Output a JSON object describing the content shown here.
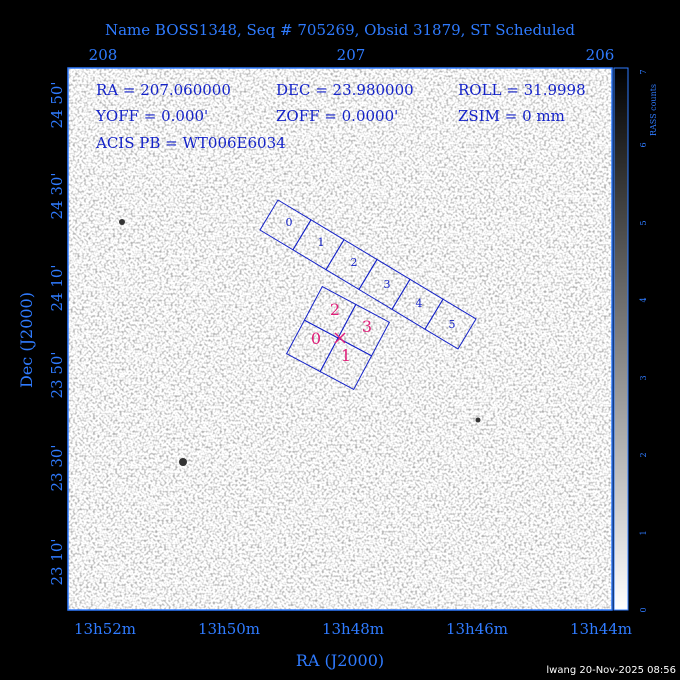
{
  "title": "Name BOSS1348, Seq # 705269, Obsid 31879, ST Scheduled",
  "top_axis": {
    "ticks": [
      "208",
      "207",
      "206"
    ]
  },
  "left_axis": {
    "label": "Dec (J2000)",
    "ticks": [
      "24 50'",
      "24 30'",
      "24 10'",
      "23 50'",
      "23 30'",
      "23 10'"
    ]
  },
  "bottom_axis": {
    "label": "RA (J2000)",
    "ticks": [
      "13h52m",
      "13h50m",
      "13h48m",
      "13h46m",
      "13h44m"
    ]
  },
  "info": [
    [
      "RA = 207.060000",
      "DEC = 23.980000",
      "ROLL = 31.9998"
    ],
    [
      "YOFF = 0.000'",
      "ZOFF = 0.0000'",
      "ZSIM = 0 mm"
    ],
    [
      "ACIS PB = WT006E6034"
    ]
  ],
  "acis_s_chips": [
    "0",
    "1",
    "2",
    "3",
    "4",
    "5"
  ],
  "acis_i_chips": [
    "2",
    "3",
    "0",
    "1"
  ],
  "colorbar": {
    "label": "RASS counts",
    "ticks": [
      "0",
      "1",
      "2",
      "3",
      "4",
      "5",
      "6",
      "7"
    ]
  },
  "footer": "lwang 20-Nov-2025 08:56"
}
